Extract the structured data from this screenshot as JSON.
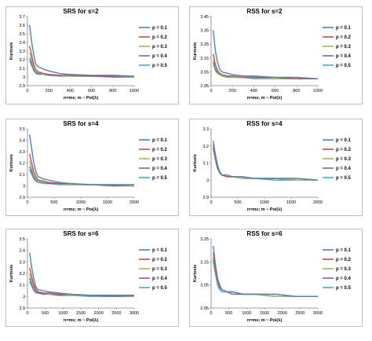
{
  "colors": {
    "p01": "#4f81bd",
    "p02": "#c0504d",
    "p03": "#9bbb59",
    "p04": "#8064a2",
    "p05": "#4bacc6",
    "frame": "#bfbfbf",
    "axis": "#808080"
  },
  "chart_data": [
    {
      "type": "line",
      "title": "SRS for s=2",
      "xlabel": "n=ms; m ~ Poi(λ)",
      "ylabel": "Kurtosis",
      "xlim": [
        0,
        1000
      ],
      "ylim": [
        2.9,
        3.7
      ],
      "xticks": [
        0,
        200,
        400,
        600,
        800,
        1000
      ],
      "xtick_labels": [
        "0",
        "200",
        "400",
        "600",
        "800",
        "1000"
      ],
      "yticks": [
        2.9,
        3,
        3.1,
        3.2,
        3.3,
        3.4,
        3.5,
        3.6,
        3.7
      ],
      "ytick_labels": [
        "2.9",
        "3",
        "3.1",
        "3.2",
        "3.3",
        "3.4",
        "3.5",
        "3.6",
        "3.7"
      ],
      "grid": false,
      "legend": "right",
      "x": [
        20,
        40,
        60,
        80,
        100,
        150,
        200,
        300,
        400,
        600,
        800,
        1000
      ],
      "series": [
        {
          "name": "p = 0.1",
          "values": [
            3.6,
            3.4,
            3.25,
            3.14,
            3.12,
            3.09,
            3.07,
            3.04,
            3.03,
            3.02,
            3.02,
            3.01
          ]
        },
        {
          "name": "p = 0.2",
          "values": [
            3.36,
            3.25,
            3.14,
            3.08,
            3.06,
            3.04,
            3.03,
            3.02,
            3.02,
            3.01,
            3.01,
            3.01
          ]
        },
        {
          "name": "p = 0.3",
          "values": [
            3.28,
            3.2,
            3.1,
            3.06,
            3.05,
            3.03,
            3.03,
            3.02,
            3.01,
            3.01,
            3.01,
            3.0
          ]
        },
        {
          "name": "p = 0.4",
          "values": [
            3.22,
            3.15,
            3.08,
            3.05,
            3.04,
            3.03,
            3.02,
            3.02,
            3.01,
            3.01,
            3.0,
            3.0
          ]
        },
        {
          "name": "p = 0.5",
          "values": [
            3.19,
            3.13,
            3.07,
            3.04,
            3.03,
            3.03,
            3.02,
            3.01,
            3.01,
            3.01,
            3.0,
            3.0
          ]
        }
      ]
    },
    {
      "type": "line",
      "title": "RSS for s=2",
      "xlabel": "n=ms; m ~ Poi(λ)",
      "ylabel": "Kurtosis",
      "xlim": [
        0,
        1000
      ],
      "ylim": [
        2.95,
        3.45
      ],
      "xticks": [
        0,
        200,
        400,
        600,
        800,
        1000
      ],
      "xtick_labels": [
        "0",
        "200",
        "400",
        "600",
        "800",
        "1000"
      ],
      "yticks": [
        2.95,
        3.05,
        3.15,
        3.25,
        3.35,
        3.45
      ],
      "ytick_labels": [
        "2.95",
        "3.05",
        "3.15",
        "3.25",
        "3.35",
        "3.45"
      ],
      "grid": false,
      "legend": "right",
      "x": [
        20,
        40,
        60,
        80,
        100,
        150,
        200,
        300,
        400,
        600,
        800,
        1000
      ],
      "series": [
        {
          "name": "p = 0.1",
          "values": [
            3.35,
            3.2,
            3.12,
            3.07,
            3.05,
            3.04,
            3.03,
            3.02,
            3.02,
            3.01,
            3.01,
            3.0
          ]
        },
        {
          "name": "p = 0.2",
          "values": [
            3.18,
            3.1,
            3.06,
            3.04,
            3.03,
            3.02,
            3.02,
            3.01,
            3.01,
            3.01,
            3.0,
            3.0
          ]
        },
        {
          "name": "p = 0.3",
          "values": [
            3.14,
            3.08,
            3.05,
            3.03,
            3.02,
            3.02,
            3.01,
            3.01,
            3.01,
            3.0,
            3.0,
            3.0
          ]
        },
        {
          "name": "p = 0.4",
          "values": [
            3.12,
            3.07,
            3.04,
            3.03,
            3.02,
            3.02,
            3.01,
            3.01,
            3.01,
            3.0,
            3.0,
            3.0
          ]
        },
        {
          "name": "p = 0.5",
          "values": [
            3.11,
            3.06,
            3.04,
            3.03,
            3.02,
            3.01,
            3.01,
            3.01,
            3.0,
            3.0,
            3.0,
            3.0
          ]
        }
      ]
    },
    {
      "type": "line",
      "title": "SRS for s=4",
      "xlabel": "n=ms; m ~ Poi(λ)",
      "ylabel": "Kurtosis",
      "xlim": [
        0,
        2000
      ],
      "ylim": [
        2.9,
        3.5
      ],
      "xticks": [
        0,
        500,
        1000,
        1500,
        2000
      ],
      "xtick_labels": [
        "0",
        "500",
        "1000",
        "1500",
        "2000"
      ],
      "yticks": [
        2.9,
        3,
        3.1,
        3.2,
        3.3,
        3.4,
        3.5
      ],
      "ytick_labels": [
        "2.9",
        "3",
        "3.1",
        "3.2",
        "3.3",
        "3.4",
        "3.5"
      ],
      "grid": false,
      "legend": "right",
      "x": [
        40,
        80,
        120,
        160,
        200,
        300,
        400,
        600,
        800,
        1200,
        1600,
        2000
      ],
      "series": [
        {
          "name": "p = 0.1",
          "values": [
            3.45,
            3.32,
            3.2,
            3.12,
            3.08,
            3.06,
            3.05,
            3.03,
            3.02,
            3.01,
            3.01,
            3.01
          ]
        },
        {
          "name": "p = 0.2",
          "values": [
            3.28,
            3.2,
            3.12,
            3.08,
            3.05,
            3.04,
            3.03,
            3.02,
            3.02,
            3.01,
            3.01,
            3.01
          ]
        },
        {
          "name": "p = 0.3",
          "values": [
            3.22,
            3.15,
            3.09,
            3.06,
            3.04,
            3.03,
            3.03,
            3.02,
            3.01,
            3.01,
            3.01,
            3.0
          ]
        },
        {
          "name": "p = 0.4",
          "values": [
            3.17,
            3.12,
            3.07,
            3.05,
            3.04,
            3.03,
            3.02,
            3.02,
            3.01,
            3.01,
            3.0,
            3.0
          ]
        },
        {
          "name": "p = 0.5",
          "values": [
            3.14,
            3.1,
            3.06,
            3.04,
            3.03,
            3.02,
            3.02,
            3.01,
            3.01,
            3.01,
            3.0,
            3.0
          ]
        }
      ]
    },
    {
      "type": "line",
      "title": "RSS for s=4",
      "xlabel": "n=ms; m ~ Poi(λ)",
      "ylabel": "Kurtosis",
      "xlim": [
        0,
        2000
      ],
      "ylim": [
        2.9,
        3.3
      ],
      "xticks": [
        0,
        500,
        1000,
        1500,
        2000
      ],
      "xtick_labels": [
        "0",
        "500",
        "1000",
        "1500",
        "2000"
      ],
      "yticks": [
        2.9,
        3,
        3.1,
        3.2,
        3.3
      ],
      "ytick_labels": [
        "2.9",
        "3",
        "3.1",
        "3.2",
        "3.3"
      ],
      "grid": false,
      "legend": "right",
      "x": [
        40,
        80,
        120,
        160,
        200,
        300,
        400,
        600,
        800,
        1200,
        1600,
        2000
      ],
      "series": [
        {
          "name": "p = 0.1",
          "values": [
            3.23,
            3.15,
            3.09,
            3.05,
            3.03,
            3.03,
            3.02,
            3.02,
            3.01,
            3.01,
            3.01,
            3.0
          ]
        },
        {
          "name": "p = 0.2",
          "values": [
            3.21,
            3.14,
            3.08,
            3.05,
            3.03,
            3.02,
            3.02,
            3.02,
            3.01,
            3.01,
            3.01,
            3.0
          ]
        },
        {
          "name": "p = 0.3",
          "values": [
            3.2,
            3.13,
            3.08,
            3.04,
            3.03,
            3.02,
            3.02,
            3.01,
            3.01,
            3.01,
            3.0,
            3.0
          ]
        },
        {
          "name": "p = 0.4",
          "values": [
            3.19,
            3.12,
            3.07,
            3.04,
            3.03,
            3.02,
            3.02,
            3.01,
            3.01,
            3.01,
            3.0,
            3.0
          ]
        },
        {
          "name": "p = 0.5",
          "values": [
            3.18,
            3.12,
            3.07,
            3.04,
            3.03,
            3.02,
            3.02,
            3.01,
            3.01,
            3.0,
            3.0,
            3.0
          ]
        }
      ]
    },
    {
      "type": "line",
      "title": "SRS for s=6",
      "xlabel": "n=ms; m ~ Poi(λ)",
      "ylabel": "Kurtosis",
      "xlim": [
        0,
        3000
      ],
      "ylim": [
        2.9,
        3.5
      ],
      "xticks": [
        0,
        500,
        1000,
        1500,
        2000,
        2500,
        3000
      ],
      "xtick_labels": [
        "0",
        "500",
        "1000",
        "1500",
        "2000",
        "2500",
        "3000"
      ],
      "yticks": [
        2.9,
        3,
        3.1,
        3.2,
        3.3,
        3.4,
        3.5
      ],
      "ytick_labels": [
        "2.9",
        "3",
        "3.1",
        "3.2",
        "3.3",
        "3.4",
        "3.5"
      ],
      "grid": false,
      "legend": "right",
      "x": [
        60,
        120,
        180,
        240,
        300,
        450,
        600,
        900,
        1200,
        1800,
        2400,
        3000
      ],
      "series": [
        {
          "name": "p = 0.1",
          "values": [
            3.38,
            3.25,
            3.15,
            3.08,
            3.06,
            3.05,
            3.04,
            3.03,
            3.02,
            3.01,
            3.01,
            3.01
          ]
        },
        {
          "name": "p = 0.2",
          "values": [
            3.25,
            3.17,
            3.1,
            3.06,
            3.04,
            3.03,
            3.03,
            3.02,
            3.02,
            3.01,
            3.01,
            3.01
          ]
        },
        {
          "name": "p = 0.3",
          "values": [
            3.2,
            3.13,
            3.08,
            3.05,
            3.04,
            3.03,
            3.02,
            3.02,
            3.01,
            3.01,
            3.01,
            3.0
          ]
        },
        {
          "name": "p = 0.4",
          "values": [
            3.16,
            3.1,
            3.06,
            3.04,
            3.03,
            3.02,
            3.02,
            3.01,
            3.01,
            3.01,
            3.0,
            3.0
          ]
        },
        {
          "name": "p = 0.5",
          "values": [
            3.13,
            3.09,
            3.05,
            3.03,
            3.03,
            3.02,
            3.02,
            3.01,
            3.01,
            3.0,
            3.0,
            3.0
          ]
        }
      ]
    },
    {
      "type": "line",
      "title": "RSS for s=6",
      "xlabel": "n=ms; m ~ Poi(λ)",
      "ylabel": "Kurtosis",
      "xlim": [
        0,
        3000
      ],
      "ylim": [
        2.95,
        3.25
      ],
      "xticks": [
        0,
        500,
        1000,
        1500,
        2000,
        2500,
        3000
      ],
      "xtick_labels": [
        "0",
        "500",
        "1000",
        "1500",
        "2000",
        "2500",
        "3000"
      ],
      "yticks": [
        2.95,
        3.05,
        3.15,
        3.25
      ],
      "ytick_labels": [
        "2.95",
        "3.05",
        "3.15",
        "3.25"
      ],
      "grid": false,
      "legend": "right",
      "x": [
        60,
        120,
        180,
        240,
        300,
        450,
        600,
        900,
        1200,
        1800,
        2400,
        3000
      ],
      "series": [
        {
          "name": "p = 0.1",
          "values": [
            3.22,
            3.14,
            3.08,
            3.05,
            3.03,
            3.02,
            3.02,
            3.01,
            3.01,
            3.01,
            3.0,
            3.0
          ]
        },
        {
          "name": "p = 0.2",
          "values": [
            3.19,
            3.12,
            3.07,
            3.04,
            3.03,
            3.02,
            3.02,
            3.01,
            3.01,
            3.01,
            3.0,
            3.0
          ]
        },
        {
          "name": "p = 0.3",
          "values": [
            3.17,
            3.11,
            3.06,
            3.04,
            3.03,
            3.02,
            3.02,
            3.01,
            3.01,
            3.0,
            3.0,
            3.0
          ]
        },
        {
          "name": "p = 0.4",
          "values": [
            3.16,
            3.1,
            3.06,
            3.04,
            3.03,
            3.02,
            3.01,
            3.01,
            3.01,
            3.0,
            3.0,
            3.0
          ]
        },
        {
          "name": "p = 0.5",
          "values": [
            3.15,
            3.1,
            3.05,
            3.03,
            3.02,
            3.02,
            3.01,
            3.01,
            3.01,
            3.0,
            3.0,
            3.0
          ]
        }
      ]
    }
  ]
}
